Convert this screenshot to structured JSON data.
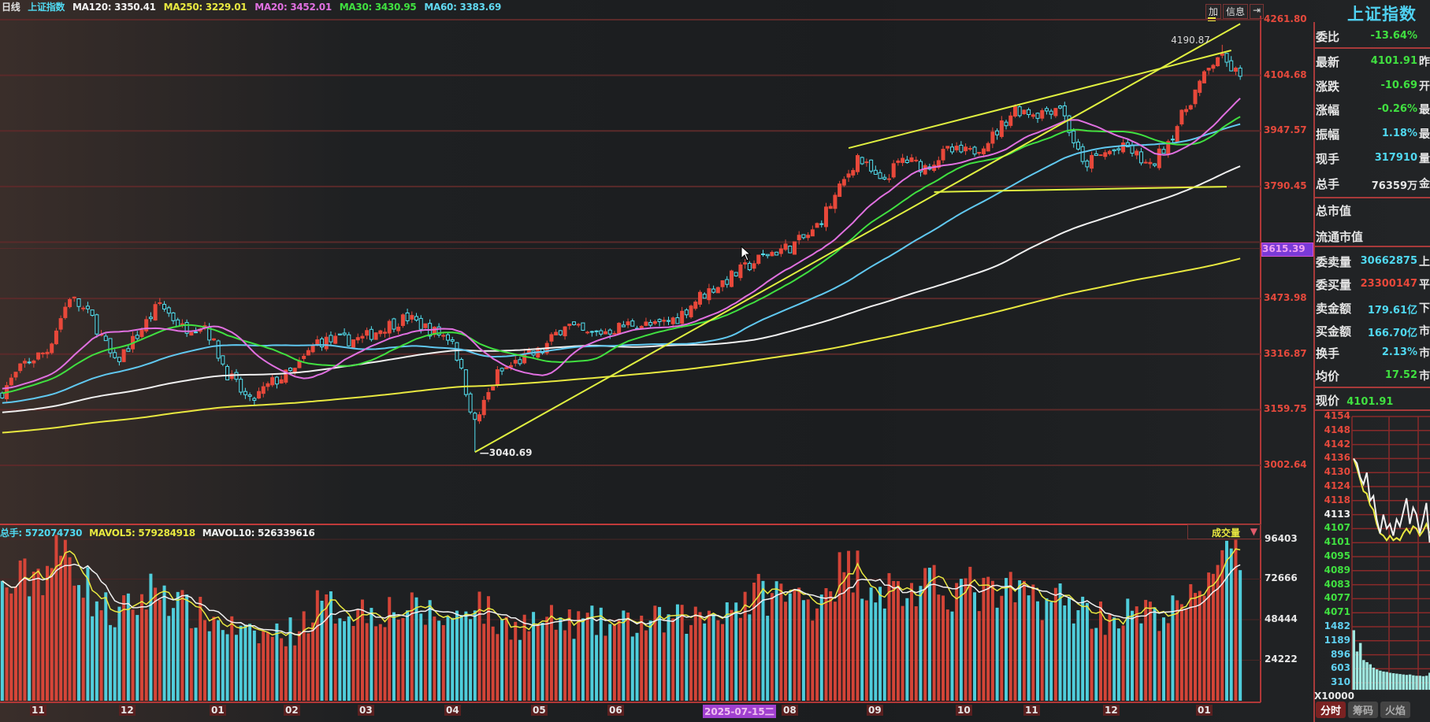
{
  "header": {
    "period": "日线",
    "symbol": "上证指数",
    "ma": [
      {
        "label": "MA120: 3350.41",
        "color": "#f0f0f0"
      },
      {
        "label": "MA250: 3229.01",
        "color": "#e8e840"
      },
      {
        "label": "MA20: 3452.01",
        "color": "#e070e0"
      },
      {
        "label": "MA30: 3430.95",
        "color": "#40e040"
      },
      {
        "label": "MA60: 3383.69",
        "color": "#60d8f0"
      }
    ],
    "buttons": [
      "加",
      "信息",
      "⇥"
    ]
  },
  "volume_header": {
    "items": [
      {
        "label": "总手: 572074730",
        "color": "#50d8f0"
      },
      {
        "label": "MAVOL5: 579284918",
        "color": "#e8e840"
      },
      {
        "label": "MAVOL10: 526339616",
        "color": "#f0f0f0"
      }
    ],
    "selector": "成交量",
    "selector_icon": "triangle-down-icon"
  },
  "chart_data": [
    {
      "type": "candlestick",
      "title": "上证指数",
      "period": "daily",
      "price_ticks": [
        "4261.80",
        "4104.68",
        "3947.57",
        "3790.45",
        "3473.98",
        "3316.87",
        "3159.75",
        "3002.64"
      ],
      "ylim": [
        3002.64,
        4261.8
      ],
      "crosshair_price": "3615.39",
      "x_ticks": [
        "11",
        "12",
        "01",
        "02",
        "03",
        "04",
        "05",
        "06",
        "2025-07-15二",
        "08",
        "09",
        "10",
        "11",
        "12",
        "01"
      ],
      "approx_closes": [
        3211,
        3290,
        3327,
        3480,
        3417,
        3290,
        3370,
        3460,
        3391,
        3400,
        3262,
        3180,
        3237,
        3270,
        3353,
        3355,
        3360,
        3395,
        3420,
        3385,
        3360,
        3120,
        3260,
        3300,
        3327,
        3404,
        3370,
        3385,
        3404,
        3395,
        3420,
        3480,
        3520,
        3560,
        3600,
        3620,
        3660,
        3760,
        3875,
        3800,
        3867,
        3845,
        3890,
        3885,
        3932,
        4010,
        3997,
        4020,
        3850,
        3885,
        3900,
        3842,
        3940,
        4060,
        4160,
        4101.91
      ],
      "annotations": {
        "high": "4190.87",
        "low": "3040.69"
      },
      "up_color": "#e8483a",
      "down_color": "#54e0f0",
      "ma_colors": {
        "MA20": "#e070e0",
        "MA30": "#40e040",
        "MA60": "#60c8f0",
        "MA120": "#f0f0f0",
        "MA250": "#e8e840"
      },
      "grid": true
    },
    {
      "type": "bar",
      "title": "成交量",
      "volume_ticks": [
        "96403",
        "72666",
        "48444",
        "24222"
      ],
      "ylim": [
        0,
        96403
      ],
      "approx_volumes": [
        65000,
        72000,
        80000,
        90000,
        62000,
        50000,
        58000,
        70000,
        55000,
        50000,
        45000,
        38000,
        40000,
        42000,
        56000,
        55000,
        54000,
        55000,
        54000,
        52000,
        48000,
        62000,
        45000,
        46000,
        48000,
        46000,
        47000,
        45000,
        46000,
        47000,
        48000,
        50000,
        56000,
        60000,
        65000,
        62000,
        60000,
        75000,
        78000,
        68000,
        65000,
        66000,
        68000,
        67000,
        62000,
        64000,
        62000,
        60000,
        55000,
        50000,
        52000,
        51000,
        53000,
        60000,
        90000,
        78000
      ]
    },
    {
      "type": "line",
      "title": "分时",
      "price_ticks": [
        "4154",
        "4148",
        "4142",
        "4136",
        "4130",
        "4124",
        "4118",
        "4113",
        "4107",
        "4101",
        "4095",
        "4089",
        "4083",
        "4077",
        "4071"
      ],
      "volume_ticks": [
        "1482",
        "1189",
        "896",
        "603",
        "310"
      ],
      "volume_unit": "X10000",
      "price_series": [
        4136,
        4134,
        4128,
        4125,
        4130,
        4118,
        4120,
        4110,
        4104,
        4112,
        4106,
        4108,
        4103,
        4110,
        4107,
        4113,
        4119,
        4108,
        4115,
        4112,
        4104,
        4110,
        4117,
        4100
      ],
      "avg_series": [
        4136,
        4132,
        4127,
        4122,
        4121,
        4116,
        4114,
        4108,
        4104,
        4103,
        4101,
        4103,
        4101,
        4102,
        4101,
        4104,
        4106,
        4104,
        4107,
        4106,
        4103,
        4105,
        4108,
        4104
      ],
      "volume_series": [
        1400,
        900,
        1100,
        700,
        650,
        600,
        520,
        480,
        450,
        430,
        420,
        400,
        390,
        380,
        370,
        360,
        350,
        360,
        340,
        330,
        330,
        320,
        330,
        400
      ]
    }
  ],
  "quote": {
    "title": "上证指数",
    "rows": [
      {
        "key": "委比",
        "value": "-13.64%",
        "color": "#40e040",
        "side": ""
      },
      {
        "key": "最新",
        "value": "4101.91",
        "color": "#40e040",
        "side": "昨"
      },
      {
        "key": "涨跌",
        "value": "-10.69",
        "color": "#40e040",
        "side": "开"
      },
      {
        "key": "涨幅",
        "value": "-0.26%",
        "color": "#40e040",
        "side": "最"
      },
      {
        "key": "振幅",
        "value": "1.18%",
        "color": "#50d8f0",
        "side": "最"
      },
      {
        "key": "现手",
        "value": "317910",
        "color": "#50d8f0",
        "side": "量"
      },
      {
        "key": "总手",
        "value": "76359万",
        "color": "#e6e6e6",
        "side": "金"
      },
      {
        "key": "总市值",
        "value": "",
        "color": "#e6e6e6",
        "side": ""
      },
      {
        "key": "流通市值",
        "value": "",
        "color": "#e6e6e6",
        "side": ""
      },
      {
        "key": "委卖量",
        "value": "30662875",
        "color": "#50d8f0",
        "side": "上"
      },
      {
        "key": "委买量",
        "value": "23300147",
        "color": "#e8483a",
        "side": "平"
      },
      {
        "key": "卖金额",
        "value": "179.61亿",
        "color": "#50d8f0",
        "side": "下"
      },
      {
        "key": "买金额",
        "value": "166.70亿",
        "color": "#50d8f0",
        "side": "市"
      },
      {
        "key": "换手",
        "value": "2.13%",
        "color": "#50d8f0",
        "side": "市"
      },
      {
        "key": "均价",
        "value": "17.52",
        "color": "#40e040",
        "side": "市"
      }
    ],
    "current_price_label": "现价",
    "current_price": "4101.91",
    "tabs": [
      "分时",
      "筹码",
      "火焰"
    ]
  }
}
